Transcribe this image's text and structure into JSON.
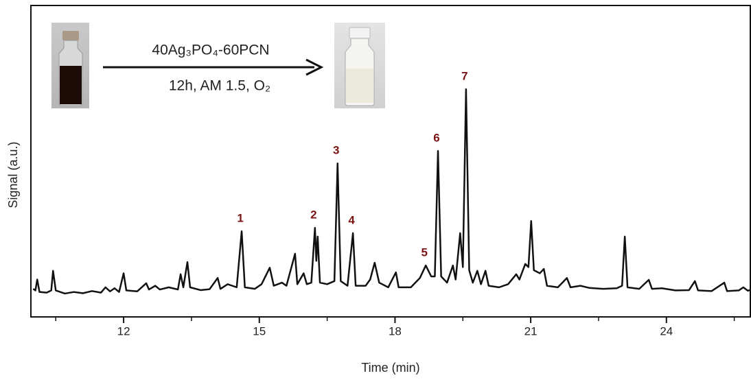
{
  "chart_data": {
    "type": "line",
    "x_label": "Time (min)",
    "y_label": "Signal (a.u.)",
    "xlim": [
      9.95,
      25.87
    ],
    "ylim": [
      0,
      100
    ],
    "xticks": [
      12,
      15,
      18,
      21,
      24
    ],
    "xminor_ticks": [
      10.5,
      13.5,
      16.5,
      19.5,
      22.5,
      25.5
    ],
    "yticks": [],
    "color": "#111111",
    "x": [
      10.0,
      10.05,
      10.09,
      10.14,
      10.3,
      10.4,
      10.44,
      10.5,
      10.7,
      10.9,
      11.1,
      11.3,
      11.5,
      11.6,
      11.7,
      11.8,
      11.9,
      12.0,
      12.06,
      12.3,
      12.5,
      12.56,
      12.7,
      12.8,
      13.0,
      13.2,
      13.26,
      13.32,
      13.41,
      13.47,
      13.7,
      13.9,
      14.08,
      14.14,
      14.3,
      14.5,
      14.61,
      14.68,
      14.9,
      15.05,
      15.23,
      15.32,
      15.5,
      15.6,
      15.79,
      15.84,
      15.98,
      16.05,
      16.15,
      16.23,
      16.26,
      16.29,
      16.34,
      16.5,
      16.66,
      16.73,
      16.8,
      16.95,
      17.07,
      17.13,
      17.35,
      17.45,
      17.55,
      17.65,
      17.85,
      18.02,
      18.08,
      18.35,
      18.55,
      18.68,
      18.8,
      18.88,
      18.95,
      19.02,
      19.15,
      19.28,
      19.34,
      19.44,
      19.5,
      19.57,
      19.64,
      19.72,
      19.82,
      19.9,
      20.0,
      20.07,
      20.3,
      20.5,
      20.68,
      20.75,
      20.88,
      20.95,
      21.01,
      21.07,
      21.2,
      21.29,
      21.36,
      21.6,
      21.8,
      21.88,
      22.1,
      22.3,
      22.6,
      22.9,
      23.02,
      23.08,
      23.14,
      23.4,
      23.61,
      23.68,
      23.9,
      24.2,
      24.5,
      24.63,
      24.7,
      25.0,
      25.28,
      25.34,
      25.6,
      25.7,
      25.8,
      25.87
    ],
    "values": [
      9,
      8.5,
      12,
      8,
      7.8,
      8.5,
      14.8,
      8.5,
      7.5,
      8,
      7.6,
      8.3,
      7.8,
      9.5,
      8.2,
      9.2,
      8,
      14,
      8.5,
      8.2,
      10.8,
      8.8,
      10,
      8.8,
      9.5,
      8.8,
      13.7,
      9.5,
      17.6,
      9.5,
      8.6,
      8.9,
      12.5,
      9,
      10.5,
      9.5,
      27.5,
      9.5,
      9,
      10.5,
      15.8,
      10,
      11,
      10,
      20.3,
      10.5,
      14,
      10.5,
      11,
      28.6,
      18,
      25.8,
      11,
      10.5,
      11.5,
      49.3,
      11.5,
      10,
      26.9,
      10,
      10,
      12,
      17.4,
      11,
      9.5,
      14.3,
      9.5,
      9.5,
      12.5,
      16.5,
      13,
      13,
      53.3,
      13,
      11,
      16.5,
      12,
      26.9,
      16,
      73.1,
      15,
      11,
      14.8,
      10.5,
      14.8,
      10,
      9.5,
      10.5,
      13.7,
      12,
      17,
      16,
      30.8,
      15,
      14,
      15.4,
      10,
      9.5,
      12.5,
      9.5,
      10,
      9.3,
      9,
      9.2,
      10,
      25.8,
      9.5,
      9,
      11.9,
      9,
      9.2,
      8.5,
      8.6,
      11.5,
      8.5,
      8.3,
      11,
      8.3,
      8.5,
      9.5,
      8.4,
      8.7
    ],
    "peak_labels": [
      {
        "text": "1",
        "x": 14.61
      },
      {
        "text": "2",
        "x": 16.23
      },
      {
        "text": "3",
        "x": 16.73
      },
      {
        "text": "4",
        "x": 17.07
      },
      {
        "text": "5",
        "x": 18.68
      },
      {
        "text": "6",
        "x": 18.95
      },
      {
        "text": "7",
        "x": 19.57
      }
    ],
    "peak_label_color": "#7a1414",
    "reaction": {
      "catalyst": "40Ag₃PO₄-60PCN",
      "conditions": "12h, AM 1.5, O₂"
    }
  }
}
